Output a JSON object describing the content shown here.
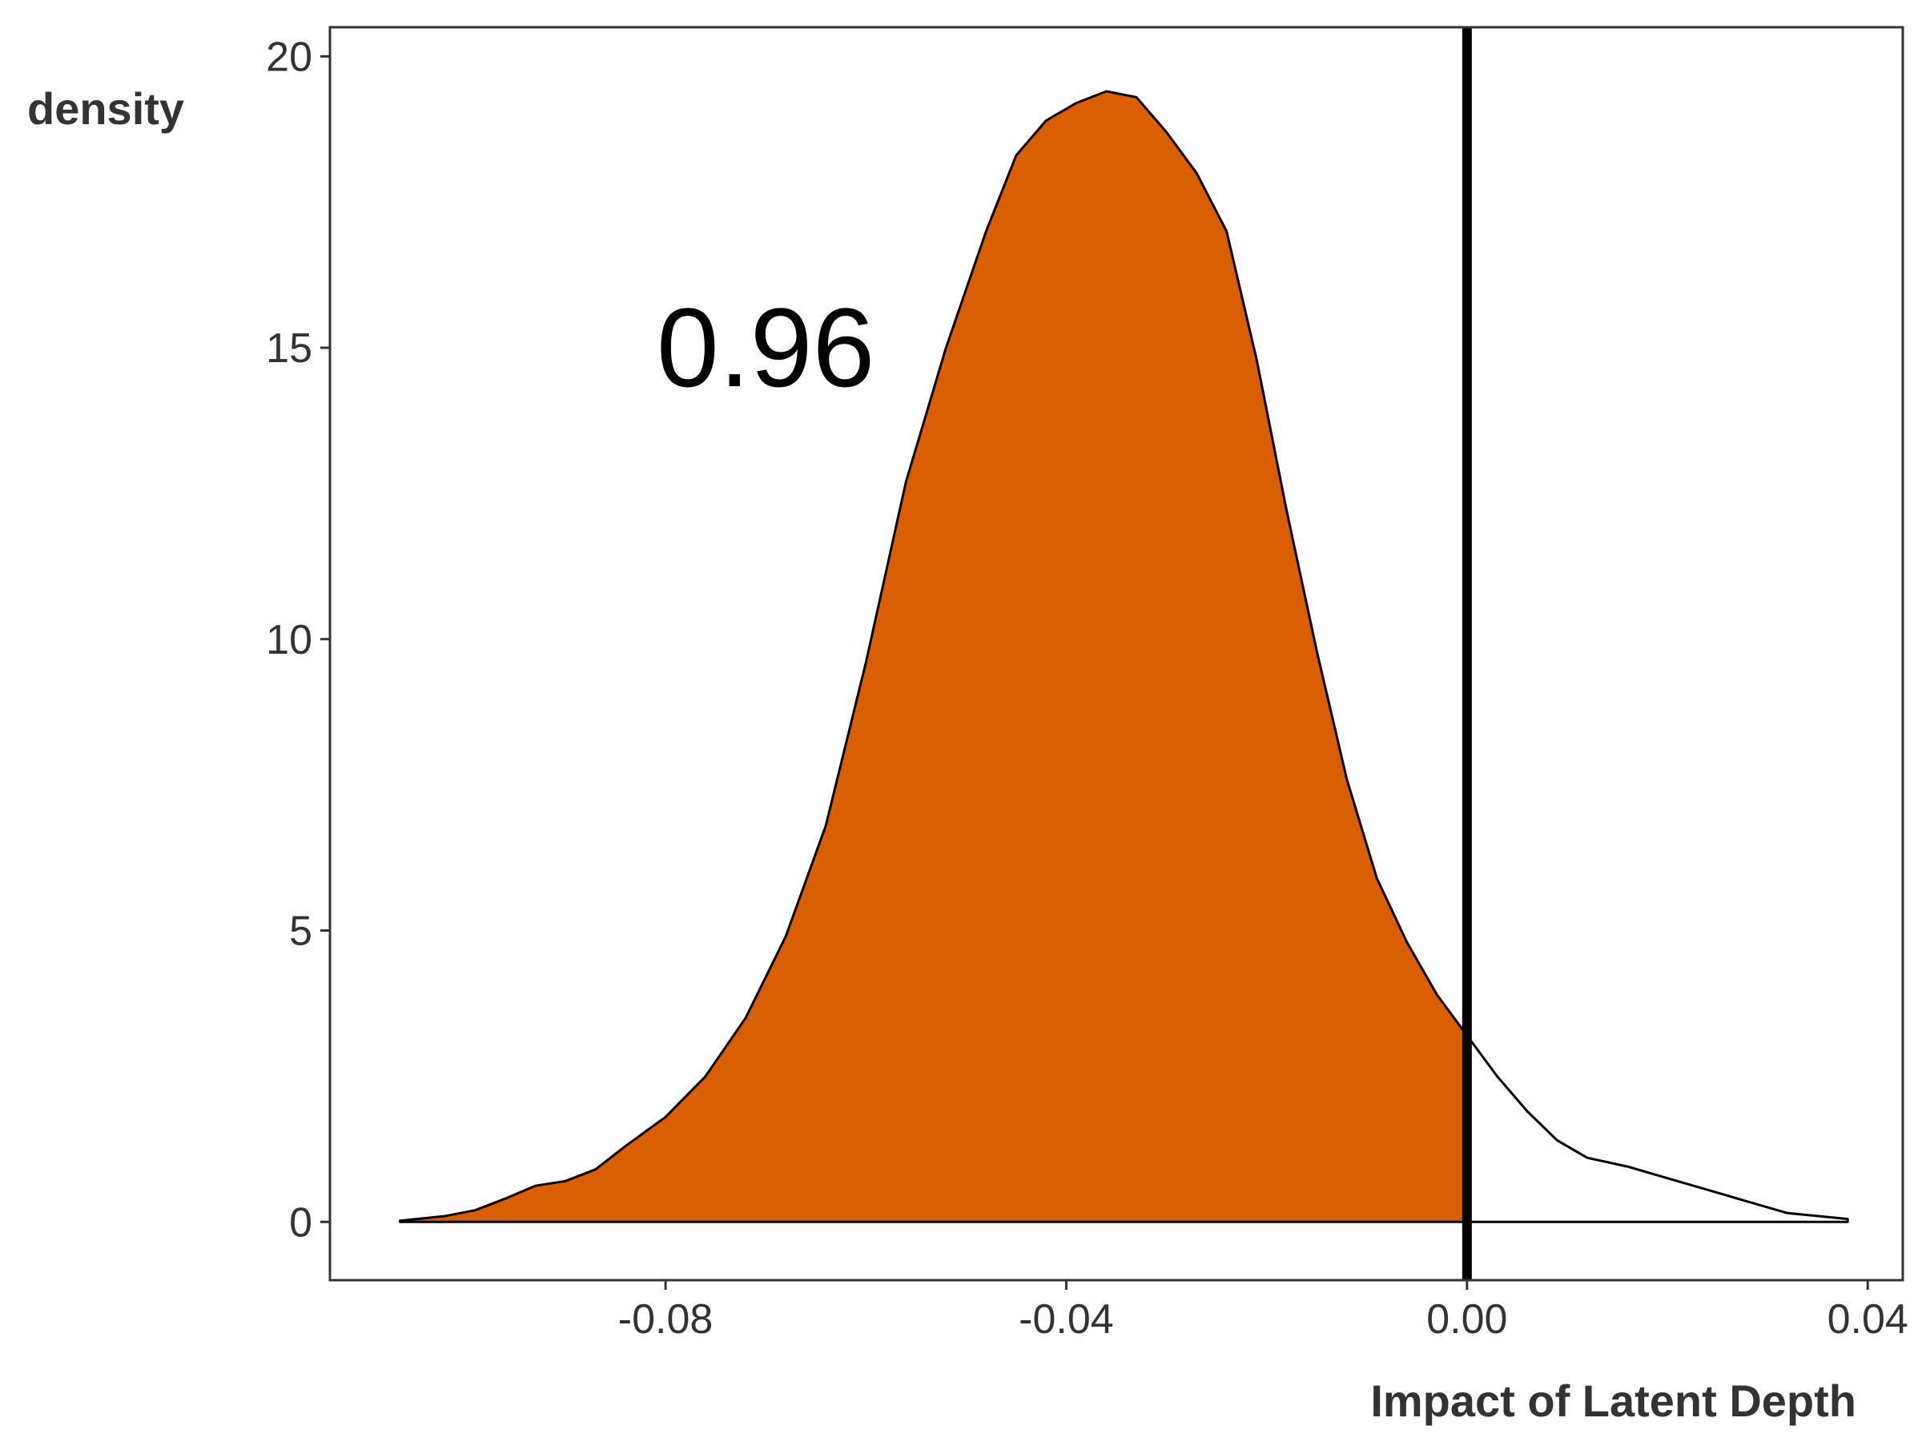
{
  "chart_data": {
    "type": "area",
    "xlabel": "Impact of Latent Depth",
    "ylabel": "density",
    "xlim": [
      -0.1135,
      0.0435
    ],
    "ylim": [
      -1.0,
      20.5
    ],
    "x_ticks": [
      -0.08,
      -0.04,
      0.0,
      0.04
    ],
    "x_tick_labels": [
      "-0.08",
      "-0.04",
      "0.00",
      "0.04"
    ],
    "y_ticks": [
      0,
      5,
      10,
      15,
      20
    ],
    "y_tick_labels": [
      "0",
      "5",
      "10",
      "15",
      "20"
    ],
    "grid": false,
    "fill_color": "#D95F02",
    "reference_line_x": 0.0,
    "annotation": {
      "text": "0.96",
      "x": -0.07,
      "y": 15
    },
    "series": [
      {
        "values": [
          [
            -0.1065,
            0.02
          ],
          [
            -0.102,
            0.1
          ],
          [
            -0.099,
            0.2
          ],
          [
            -0.096,
            0.4
          ],
          [
            -0.093,
            0.62
          ],
          [
            -0.09,
            0.7
          ],
          [
            -0.087,
            0.9
          ],
          [
            -0.084,
            1.3
          ],
          [
            -0.08,
            1.8
          ],
          [
            -0.076,
            2.5
          ],
          [
            -0.072,
            3.5
          ],
          [
            -0.068,
            4.9
          ],
          [
            -0.064,
            6.8
          ],
          [
            -0.06,
            9.6
          ],
          [
            -0.056,
            12.7
          ],
          [
            -0.052,
            15.0
          ],
          [
            -0.048,
            17.0
          ],
          [
            -0.045,
            18.3
          ],
          [
            -0.042,
            18.9
          ],
          [
            -0.039,
            19.2
          ],
          [
            -0.036,
            19.4
          ],
          [
            -0.033,
            19.3
          ],
          [
            -0.03,
            18.7
          ],
          [
            -0.027,
            18.0
          ],
          [
            -0.024,
            17.0
          ],
          [
            -0.021,
            14.8
          ],
          [
            -0.018,
            12.2
          ],
          [
            -0.015,
            9.8
          ],
          [
            -0.012,
            7.6
          ],
          [
            -0.009,
            5.9
          ],
          [
            -0.006,
            4.8
          ],
          [
            -0.003,
            3.9
          ],
          [
            0.0,
            3.2
          ],
          [
            0.003,
            2.5
          ],
          [
            0.006,
            1.9
          ],
          [
            0.009,
            1.4
          ],
          [
            0.012,
            1.1
          ],
          [
            0.016,
            0.95
          ],
          [
            0.02,
            0.75
          ],
          [
            0.024,
            0.55
          ],
          [
            0.028,
            0.35
          ],
          [
            0.032,
            0.15
          ],
          [
            0.038,
            0.05
          ]
        ]
      }
    ]
  }
}
